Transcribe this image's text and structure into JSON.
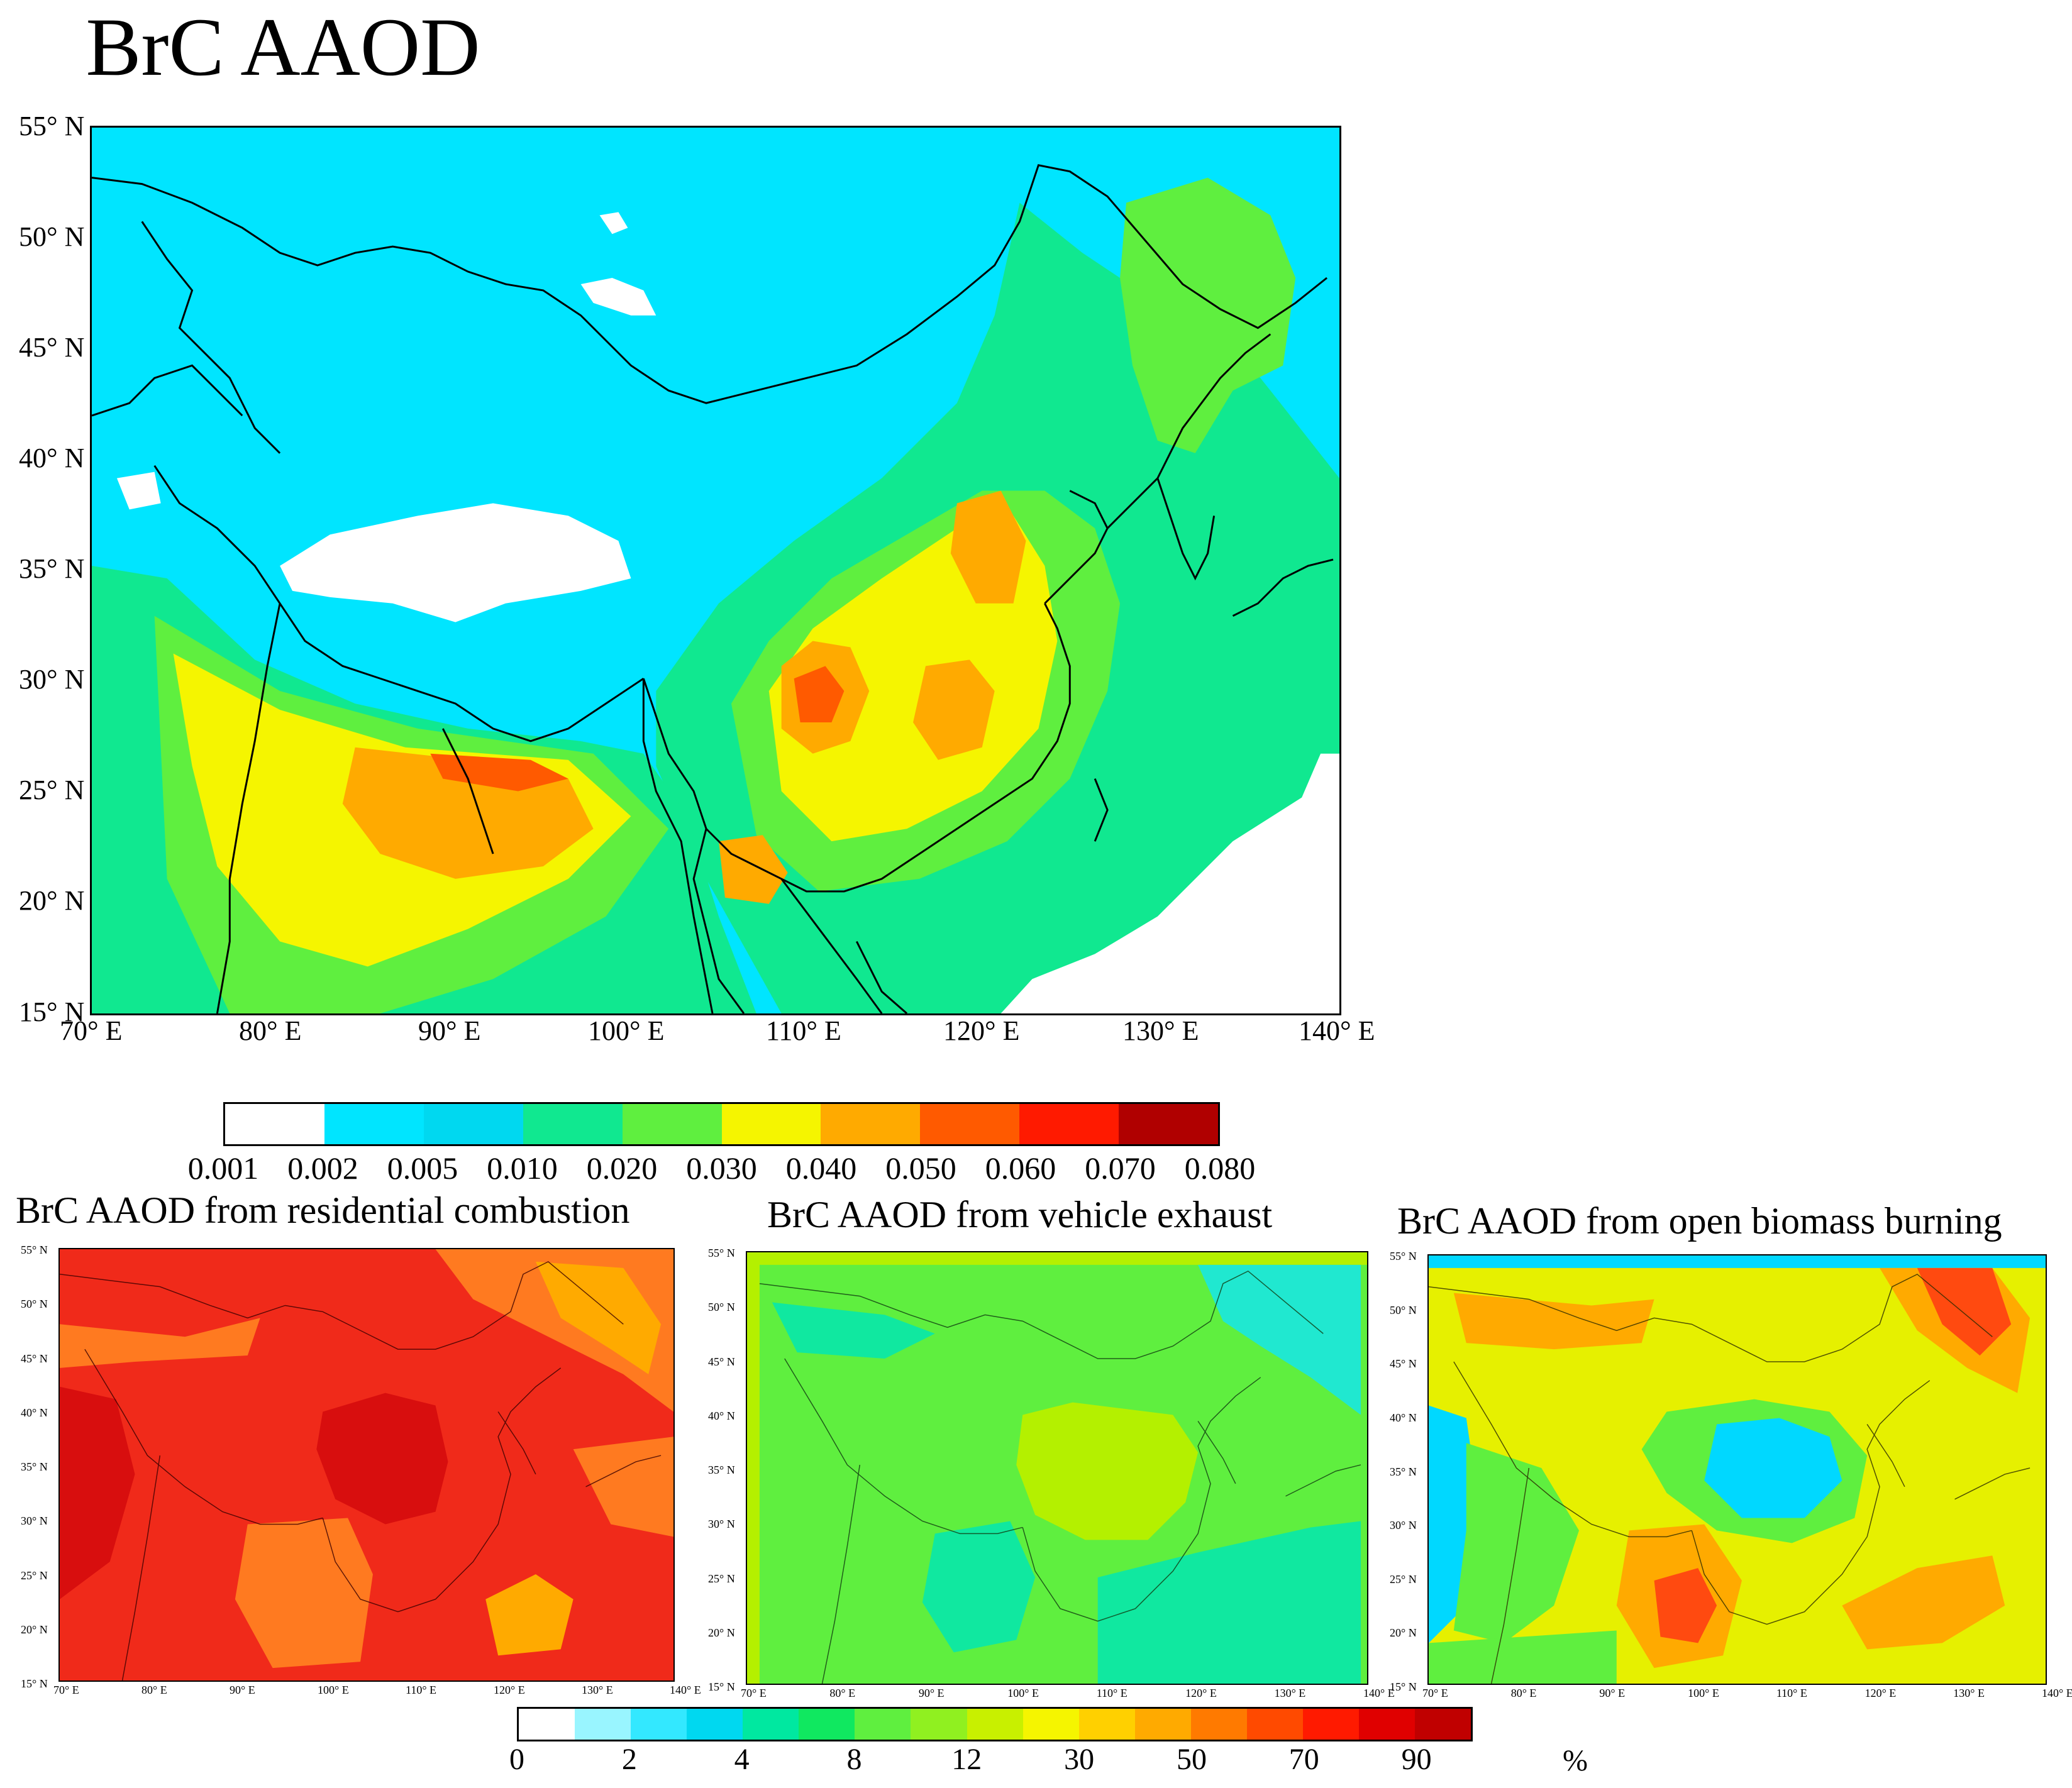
{
  "main_title": "BrC AAOD",
  "main_map": {
    "lat_labels": [
      "55° N",
      "50° N",
      "45° N",
      "40° N",
      "35° N",
      "30° N",
      "25° N",
      "20° N",
      "15° N"
    ],
    "lon_labels": [
      "70° E",
      "80° E",
      "90° E",
      "100° E",
      "110° E",
      "120° E",
      "130° E",
      "140° E"
    ],
    "colorbar": {
      "ticks": [
        "0.001",
        "0.002",
        "0.005",
        "0.010",
        "0.020",
        "0.030",
        "0.040",
        "0.050",
        "0.060",
        "0.070",
        "0.080"
      ],
      "colors": [
        "#ffffff",
        "#00e5ff",
        "#00d8f0",
        "#10e890",
        "#5fef3f",
        "#f5f500",
        "#ffaa00",
        "#ff5a00",
        "#ff1a00",
        "#b00000"
      ]
    },
    "colors": {
      "base": "#00e5ff",
      "green": "#10e890",
      "lightgreen": "#5fef3f",
      "yellow": "#f5f500",
      "orange": "#ffaa00",
      "red": "#ff5a00",
      "land_blank": "#ffffff"
    }
  },
  "small_maps": [
    {
      "title": "BrC AAOD from residential combustion",
      "lat_labels": [
        "55° N",
        "50° N",
        "45° N",
        "40° N",
        "35° N",
        "30° N",
        "25° N",
        "20° N",
        "15° N"
      ],
      "lon_labels": [
        "70° E",
        "80° E",
        "90° E",
        "100° E",
        "110° E",
        "120° E",
        "130° E",
        "140° E"
      ],
      "colors": {
        "base": "#f02a1a",
        "dark": "#d80e0e",
        "orange": "#ff7a20",
        "amber": "#ffaa00"
      }
    },
    {
      "title": "BrC AAOD from vehicle exhaust",
      "lat_labels": [
        "55° N",
        "50° N",
        "45° N",
        "40° N",
        "35° N",
        "30° N",
        "25° N",
        "20° N",
        "15° N"
      ],
      "lon_labels": [
        "70° E",
        "80° E",
        "90° E",
        "100° E",
        "110° E",
        "120° E",
        "130° E",
        "140° E"
      ],
      "colors": {
        "base": "#5fef3f",
        "lime": "#b4f000",
        "teal": "#10e8a0",
        "cyan": "#20e8d0"
      }
    },
    {
      "title": "BrC AAOD from open biomass burning",
      "lat_labels": [
        "55° N",
        "50° N",
        "45° N",
        "40° N",
        "35° N",
        "30° N",
        "25° N",
        "20° N",
        "15° N"
      ],
      "lon_labels": [
        "70° E",
        "80° E",
        "90° E",
        "100° E",
        "110° E",
        "120° E",
        "130° E",
        "140° E"
      ],
      "colors": {
        "base": "#e6f000",
        "orange": "#ffaa00",
        "red": "#ff4a10",
        "cyan": "#00d8ff",
        "green": "#5fef3f"
      }
    }
  ],
  "bottom_colorbar": {
    "ticks": [
      "0",
      "2",
      "4",
      "8",
      "12",
      "30",
      "50",
      "70",
      "90"
    ],
    "colors": [
      "#ffffff",
      "#99f5ff",
      "#33e8ff",
      "#00d8f0",
      "#00e8a0",
      "#10e860",
      "#5fef3f",
      "#90f020",
      "#c8f000",
      "#f5f500",
      "#ffd000",
      "#ffaa00",
      "#ff7a00",
      "#ff4a00",
      "#ff1a00",
      "#e00000",
      "#c00000"
    ],
    "unit": "%"
  }
}
